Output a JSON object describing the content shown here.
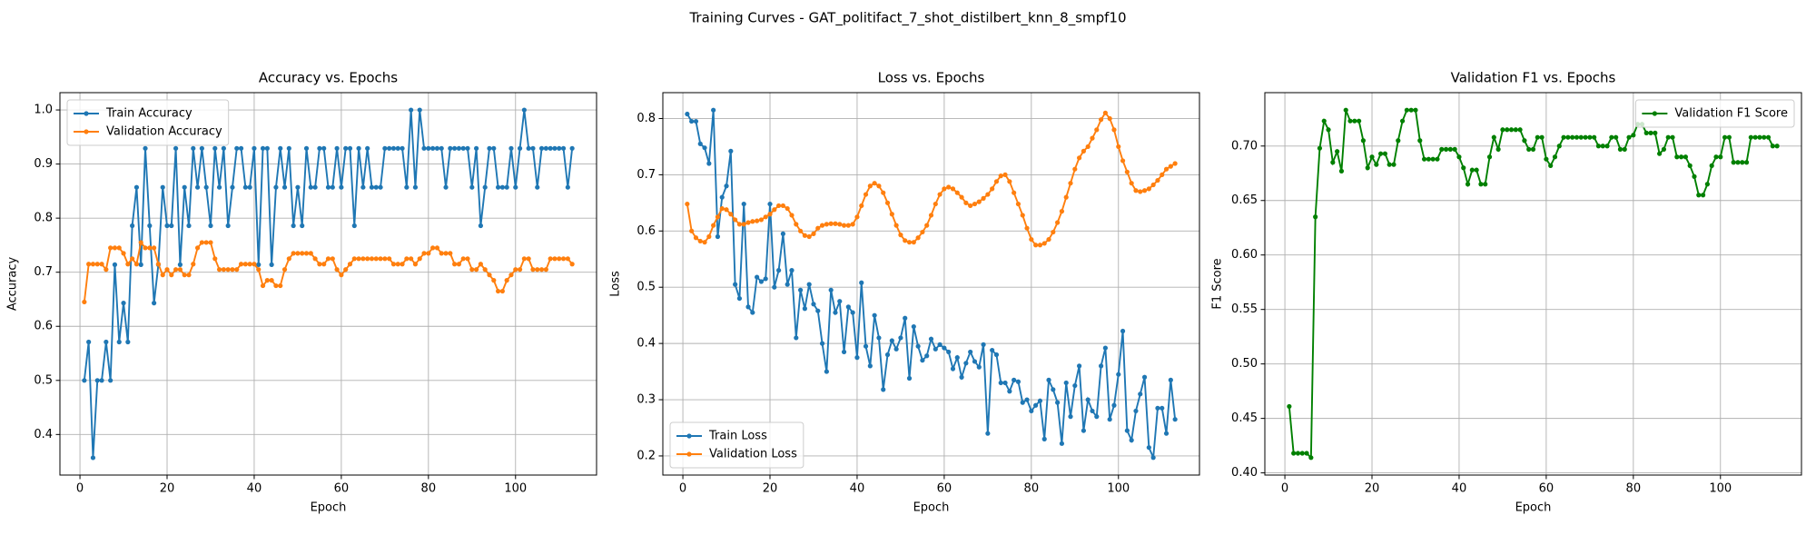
{
  "title": "Training Curves - GAT_politifact_7_shot_distilbert_knn_8_smpf10",
  "chart_data": [
    {
      "type": "line",
      "title": "Accuracy vs. Epochs",
      "xlabel": "Epoch",
      "ylabel": "Accuracy",
      "grid": true,
      "legend": "upper left",
      "xlim": [
        -4.6,
        118.6
      ],
      "xticks": [
        0,
        20,
        40,
        60,
        80,
        100
      ],
      "ylim": [
        0.325,
        1.032
      ],
      "yticks": [
        0.4,
        0.5,
        0.6,
        0.7,
        0.8,
        0.9,
        {
          "value": 1,
          "label": "1.0"
        }
      ],
      "x": [
        1,
        2,
        3,
        4,
        5,
        6,
        7,
        8,
        9,
        10,
        11,
        12,
        13,
        14,
        15,
        16,
        17,
        18,
        19,
        20,
        21,
        22,
        23,
        24,
        25,
        26,
        27,
        28,
        29,
        30,
        31,
        32,
        33,
        34,
        35,
        36,
        37,
        38,
        39,
        40,
        41,
        42,
        43,
        44,
        45,
        46,
        47,
        48,
        49,
        50,
        51,
        52,
        53,
        54,
        55,
        56,
        57,
        58,
        59,
        60,
        61,
        62,
        63,
        64,
        65,
        66,
        67,
        68,
        69,
        70,
        71,
        72,
        73,
        74,
        75,
        76,
        77,
        78,
        79,
        80,
        81,
        82,
        83,
        84,
        85,
        86,
        87,
        88,
        89,
        90,
        91,
        92,
        93,
        94,
        95,
        96,
        97,
        98,
        99,
        100,
        101,
        102,
        103,
        104,
        105,
        106,
        107,
        108,
        109,
        110,
        111,
        112,
        113
      ],
      "series": [
        {
          "name": "Train Accuracy",
          "color": "#1f77b4",
          "values": [
            0.5,
            0.571,
            0.357,
            0.5,
            0.5,
            0.571,
            0.5,
            0.714,
            0.571,
            0.643,
            0.571,
            0.786,
            0.857,
            0.714,
            0.929,
            0.786,
            0.643,
            0.714,
            0.857,
            0.786,
            0.786,
            0.929,
            0.714,
            0.857,
            0.786,
            0.929,
            0.857,
            0.929,
            0.857,
            0.786,
            0.929,
            0.857,
            0.929,
            0.786,
            0.857,
            0.929,
            0.929,
            0.857,
            0.857,
            0.929,
            0.714,
            0.929,
            0.929,
            0.714,
            0.857,
            0.929,
            0.857,
            0.929,
            0.786,
            0.857,
            0.786,
            0.929,
            0.857,
            0.857,
            0.929,
            0.929,
            0.857,
            0.857,
            0.929,
            0.857,
            0.929,
            0.929,
            0.786,
            0.929,
            0.857,
            0.929,
            0.857,
            0.857,
            0.857,
            0.929,
            0.929,
            0.929,
            0.929,
            0.929,
            0.857,
            1.0,
            0.857,
            1.0,
            0.929,
            0.929,
            0.929,
            0.929,
            0.929,
            0.857,
            0.929,
            0.929,
            0.929,
            0.929,
            0.929,
            0.857,
            0.929,
            0.786,
            0.857,
            0.929,
            0.929,
            0.857,
            0.857,
            0.857,
            0.929,
            0.857,
            0.929,
            1.0,
            0.929,
            0.929,
            0.857,
            0.929,
            0.929,
            0.929,
            0.929,
            0.929,
            0.929,
            0.857,
            0.929
          ]
        },
        {
          "name": "Validation Accuracy",
          "color": "#ff7f0e",
          "values": [
            0.645,
            0.715,
            0.715,
            0.715,
            0.715,
            0.705,
            0.745,
            0.745,
            0.745,
            0.735,
            0.715,
            0.725,
            0.715,
            0.755,
            0.745,
            0.745,
            0.745,
            0.715,
            0.695,
            0.705,
            0.695,
            0.705,
            0.705,
            0.695,
            0.695,
            0.715,
            0.745,
            0.755,
            0.755,
            0.755,
            0.725,
            0.705,
            0.705,
            0.705,
            0.705,
            0.705,
            0.715,
            0.715,
            0.715,
            0.715,
            0.705,
            0.675,
            0.685,
            0.685,
            0.675,
            0.675,
            0.705,
            0.725,
            0.735,
            0.735,
            0.735,
            0.735,
            0.735,
            0.725,
            0.715,
            0.715,
            0.725,
            0.725,
            0.705,
            0.695,
            0.705,
            0.715,
            0.725,
            0.725,
            0.725,
            0.725,
            0.725,
            0.725,
            0.725,
            0.725,
            0.725,
            0.715,
            0.715,
            0.715,
            0.725,
            0.725,
            0.715,
            0.725,
            0.735,
            0.735,
            0.745,
            0.745,
            0.735,
            0.735,
            0.735,
            0.715,
            0.715,
            0.725,
            0.725,
            0.705,
            0.705,
            0.715,
            0.705,
            0.695,
            0.685,
            0.665,
            0.665,
            0.685,
            0.695,
            0.705,
            0.705,
            0.725,
            0.725,
            0.705,
            0.705,
            0.705,
            0.705,
            0.725,
            0.725,
            0.725,
            0.725,
            0.725,
            0.715
          ]
        }
      ]
    },
    {
      "type": "line",
      "title": "Loss vs. Epochs",
      "xlabel": "Epoch",
      "ylabel": "Loss",
      "grid": true,
      "legend": "lower left",
      "xlim": [
        -4.6,
        118.6
      ],
      "xticks": [
        0,
        20,
        40,
        60,
        80,
        100
      ],
      "ylim": [
        0.166,
        0.846
      ],
      "yticks": [
        0.2,
        0.3,
        0.4,
        0.5,
        0.6,
        0.7,
        0.8
      ],
      "x": [
        1,
        2,
        3,
        4,
        5,
        6,
        7,
        8,
        9,
        10,
        11,
        12,
        13,
        14,
        15,
        16,
        17,
        18,
        19,
        20,
        21,
        22,
        23,
        24,
        25,
        26,
        27,
        28,
        29,
        30,
        31,
        32,
        33,
        34,
        35,
        36,
        37,
        38,
        39,
        40,
        41,
        42,
        43,
        44,
        45,
        46,
        47,
        48,
        49,
        50,
        51,
        52,
        53,
        54,
        55,
        56,
        57,
        58,
        59,
        60,
        61,
        62,
        63,
        64,
        65,
        66,
        67,
        68,
        69,
        70,
        71,
        72,
        73,
        74,
        75,
        76,
        77,
        78,
        79,
        80,
        81,
        82,
        83,
        84,
        85,
        86,
        87,
        88,
        89,
        90,
        91,
        92,
        93,
        94,
        95,
        96,
        97,
        98,
        99,
        100,
        101,
        102,
        103,
        104,
        105,
        106,
        107,
        108,
        109,
        110,
        111,
        112,
        113
      ],
      "series": [
        {
          "name": "Train Loss",
          "color": "#1f77b4",
          "values": [
            0.808,
            0.795,
            0.795,
            0.755,
            0.748,
            0.72,
            0.815,
            0.59,
            0.66,
            0.68,
            0.742,
            0.505,
            0.48,
            0.648,
            0.465,
            0.455,
            0.518,
            0.51,
            0.515,
            0.648,
            0.5,
            0.53,
            0.595,
            0.505,
            0.53,
            0.41,
            0.495,
            0.462,
            0.505,
            0.47,
            0.458,
            0.4,
            0.35,
            0.495,
            0.455,
            0.475,
            0.385,
            0.465,
            0.455,
            0.375,
            0.508,
            0.395,
            0.36,
            0.45,
            0.41,
            0.318,
            0.38,
            0.405,
            0.39,
            0.41,
            0.445,
            0.338,
            0.43,
            0.395,
            0.37,
            0.378,
            0.408,
            0.39,
            0.398,
            0.392,
            0.385,
            0.355,
            0.375,
            0.34,
            0.365,
            0.385,
            0.368,
            0.358,
            0.398,
            0.24,
            0.388,
            0.38,
            0.33,
            0.33,
            0.315,
            0.335,
            0.332,
            0.295,
            0.3,
            0.28,
            0.29,
            0.298,
            0.23,
            0.335,
            0.318,
            0.295,
            0.222,
            0.33,
            0.27,
            0.325,
            0.36,
            0.245,
            0.3,
            0.28,
            0.27,
            0.36,
            0.392,
            0.265,
            0.29,
            0.345,
            0.422,
            0.245,
            0.228,
            0.28,
            0.31,
            0.34,
            0.215,
            0.197,
            0.285,
            0.285,
            0.24,
            0.335,
            0.265
          ]
        },
        {
          "name": "Validation Loss",
          "color": "#ff7f0e",
          "values": [
            0.648,
            0.6,
            0.588,
            0.582,
            0.58,
            0.59,
            0.61,
            0.625,
            0.64,
            0.638,
            0.63,
            0.62,
            0.612,
            0.612,
            0.615,
            0.617,
            0.618,
            0.62,
            0.625,
            0.63,
            0.638,
            0.645,
            0.645,
            0.64,
            0.628,
            0.612,
            0.6,
            0.592,
            0.59,
            0.595,
            0.605,
            0.61,
            0.612,
            0.613,
            0.613,
            0.612,
            0.61,
            0.61,
            0.612,
            0.625,
            0.645,
            0.665,
            0.68,
            0.685,
            0.68,
            0.668,
            0.65,
            0.63,
            0.61,
            0.593,
            0.583,
            0.58,
            0.58,
            0.588,
            0.598,
            0.61,
            0.628,
            0.648,
            0.665,
            0.675,
            0.678,
            0.675,
            0.668,
            0.66,
            0.65,
            0.645,
            0.648,
            0.652,
            0.658,
            0.665,
            0.675,
            0.688,
            0.698,
            0.7,
            0.688,
            0.668,
            0.648,
            0.628,
            0.605,
            0.585,
            0.575,
            0.575,
            0.578,
            0.585,
            0.598,
            0.615,
            0.635,
            0.66,
            0.685,
            0.71,
            0.73,
            0.742,
            0.75,
            0.765,
            0.78,
            0.798,
            0.81,
            0.8,
            0.78,
            0.75,
            0.725,
            0.705,
            0.685,
            0.672,
            0.67,
            0.672,
            0.675,
            0.682,
            0.69,
            0.7,
            0.71,
            0.715,
            0.72
          ]
        }
      ]
    },
    {
      "type": "line",
      "title": "Validation F1 vs. Epochs",
      "xlabel": "Epoch",
      "ylabel": "F1 Score",
      "grid": true,
      "legend": "upper right",
      "xlim": [
        -4.6,
        118.6
      ],
      "xticks": [
        0,
        20,
        40,
        60,
        80,
        100
      ],
      "ylim": [
        0.398,
        0.749
      ],
      "yticks": [
        {
          "value": 0.4,
          "label": "0.40"
        },
        0.45,
        {
          "value": 0.5,
          "label": "0.50"
        },
        0.55,
        {
          "value": 0.6,
          "label": "0.60"
        },
        0.65,
        {
          "value": 0.7,
          "label": "0.70"
        }
      ],
      "x": [
        1,
        2,
        3,
        4,
        5,
        6,
        7,
        8,
        9,
        10,
        11,
        12,
        13,
        14,
        15,
        16,
        17,
        18,
        19,
        20,
        21,
        22,
        23,
        24,
        25,
        26,
        27,
        28,
        29,
        30,
        31,
        32,
        33,
        34,
        35,
        36,
        37,
        38,
        39,
        40,
        41,
        42,
        43,
        44,
        45,
        46,
        47,
        48,
        49,
        50,
        51,
        52,
        53,
        54,
        55,
        56,
        57,
        58,
        59,
        60,
        61,
        62,
        63,
        64,
        65,
        66,
        67,
        68,
        69,
        70,
        71,
        72,
        73,
        74,
        75,
        76,
        77,
        78,
        79,
        80,
        81,
        82,
        83,
        84,
        85,
        86,
        87,
        88,
        89,
        90,
        91,
        92,
        93,
        94,
        95,
        96,
        97,
        98,
        99,
        100,
        101,
        102,
        103,
        104,
        105,
        106,
        107,
        108,
        109,
        110,
        111,
        112,
        113
      ],
      "series": [
        {
          "name": "Validation F1 Score",
          "color": "#008000",
          "values": [
            0.461,
            0.418,
            0.418,
            0.418,
            0.418,
            0.414,
            0.635,
            0.698,
            0.723,
            0.715,
            0.685,
            0.695,
            0.677,
            0.733,
            0.723,
            0.723,
            0.723,
            0.705,
            0.68,
            0.69,
            0.683,
            0.693,
            0.693,
            0.683,
            0.683,
            0.705,
            0.723,
            0.733,
            0.733,
            0.733,
            0.705,
            0.688,
            0.688,
            0.688,
            0.688,
            0.697,
            0.697,
            0.697,
            0.697,
            0.69,
            0.68,
            0.665,
            0.678,
            0.678,
            0.665,
            0.665,
            0.69,
            0.708,
            0.697,
            0.715,
            0.715,
            0.715,
            0.715,
            0.715,
            0.705,
            0.697,
            0.697,
            0.708,
            0.708,
            0.688,
            0.682,
            0.69,
            0.7,
            0.708,
            0.708,
            0.708,
            0.708,
            0.708,
            0.708,
            0.708,
            0.708,
            0.7,
            0.7,
            0.7,
            0.708,
            0.708,
            0.697,
            0.697,
            0.708,
            0.71,
            0.72,
            0.72,
            0.712,
            0.712,
            0.712,
            0.693,
            0.697,
            0.708,
            0.708,
            0.69,
            0.69,
            0.69,
            0.682,
            0.672,
            0.655,
            0.655,
            0.665,
            0.682,
            0.69,
            0.69,
            0.708,
            0.708,
            0.685,
            0.685,
            0.685,
            0.685,
            0.708,
            0.708,
            0.708,
            0.708,
            0.708,
            0.7,
            0.7
          ]
        }
      ]
    }
  ]
}
